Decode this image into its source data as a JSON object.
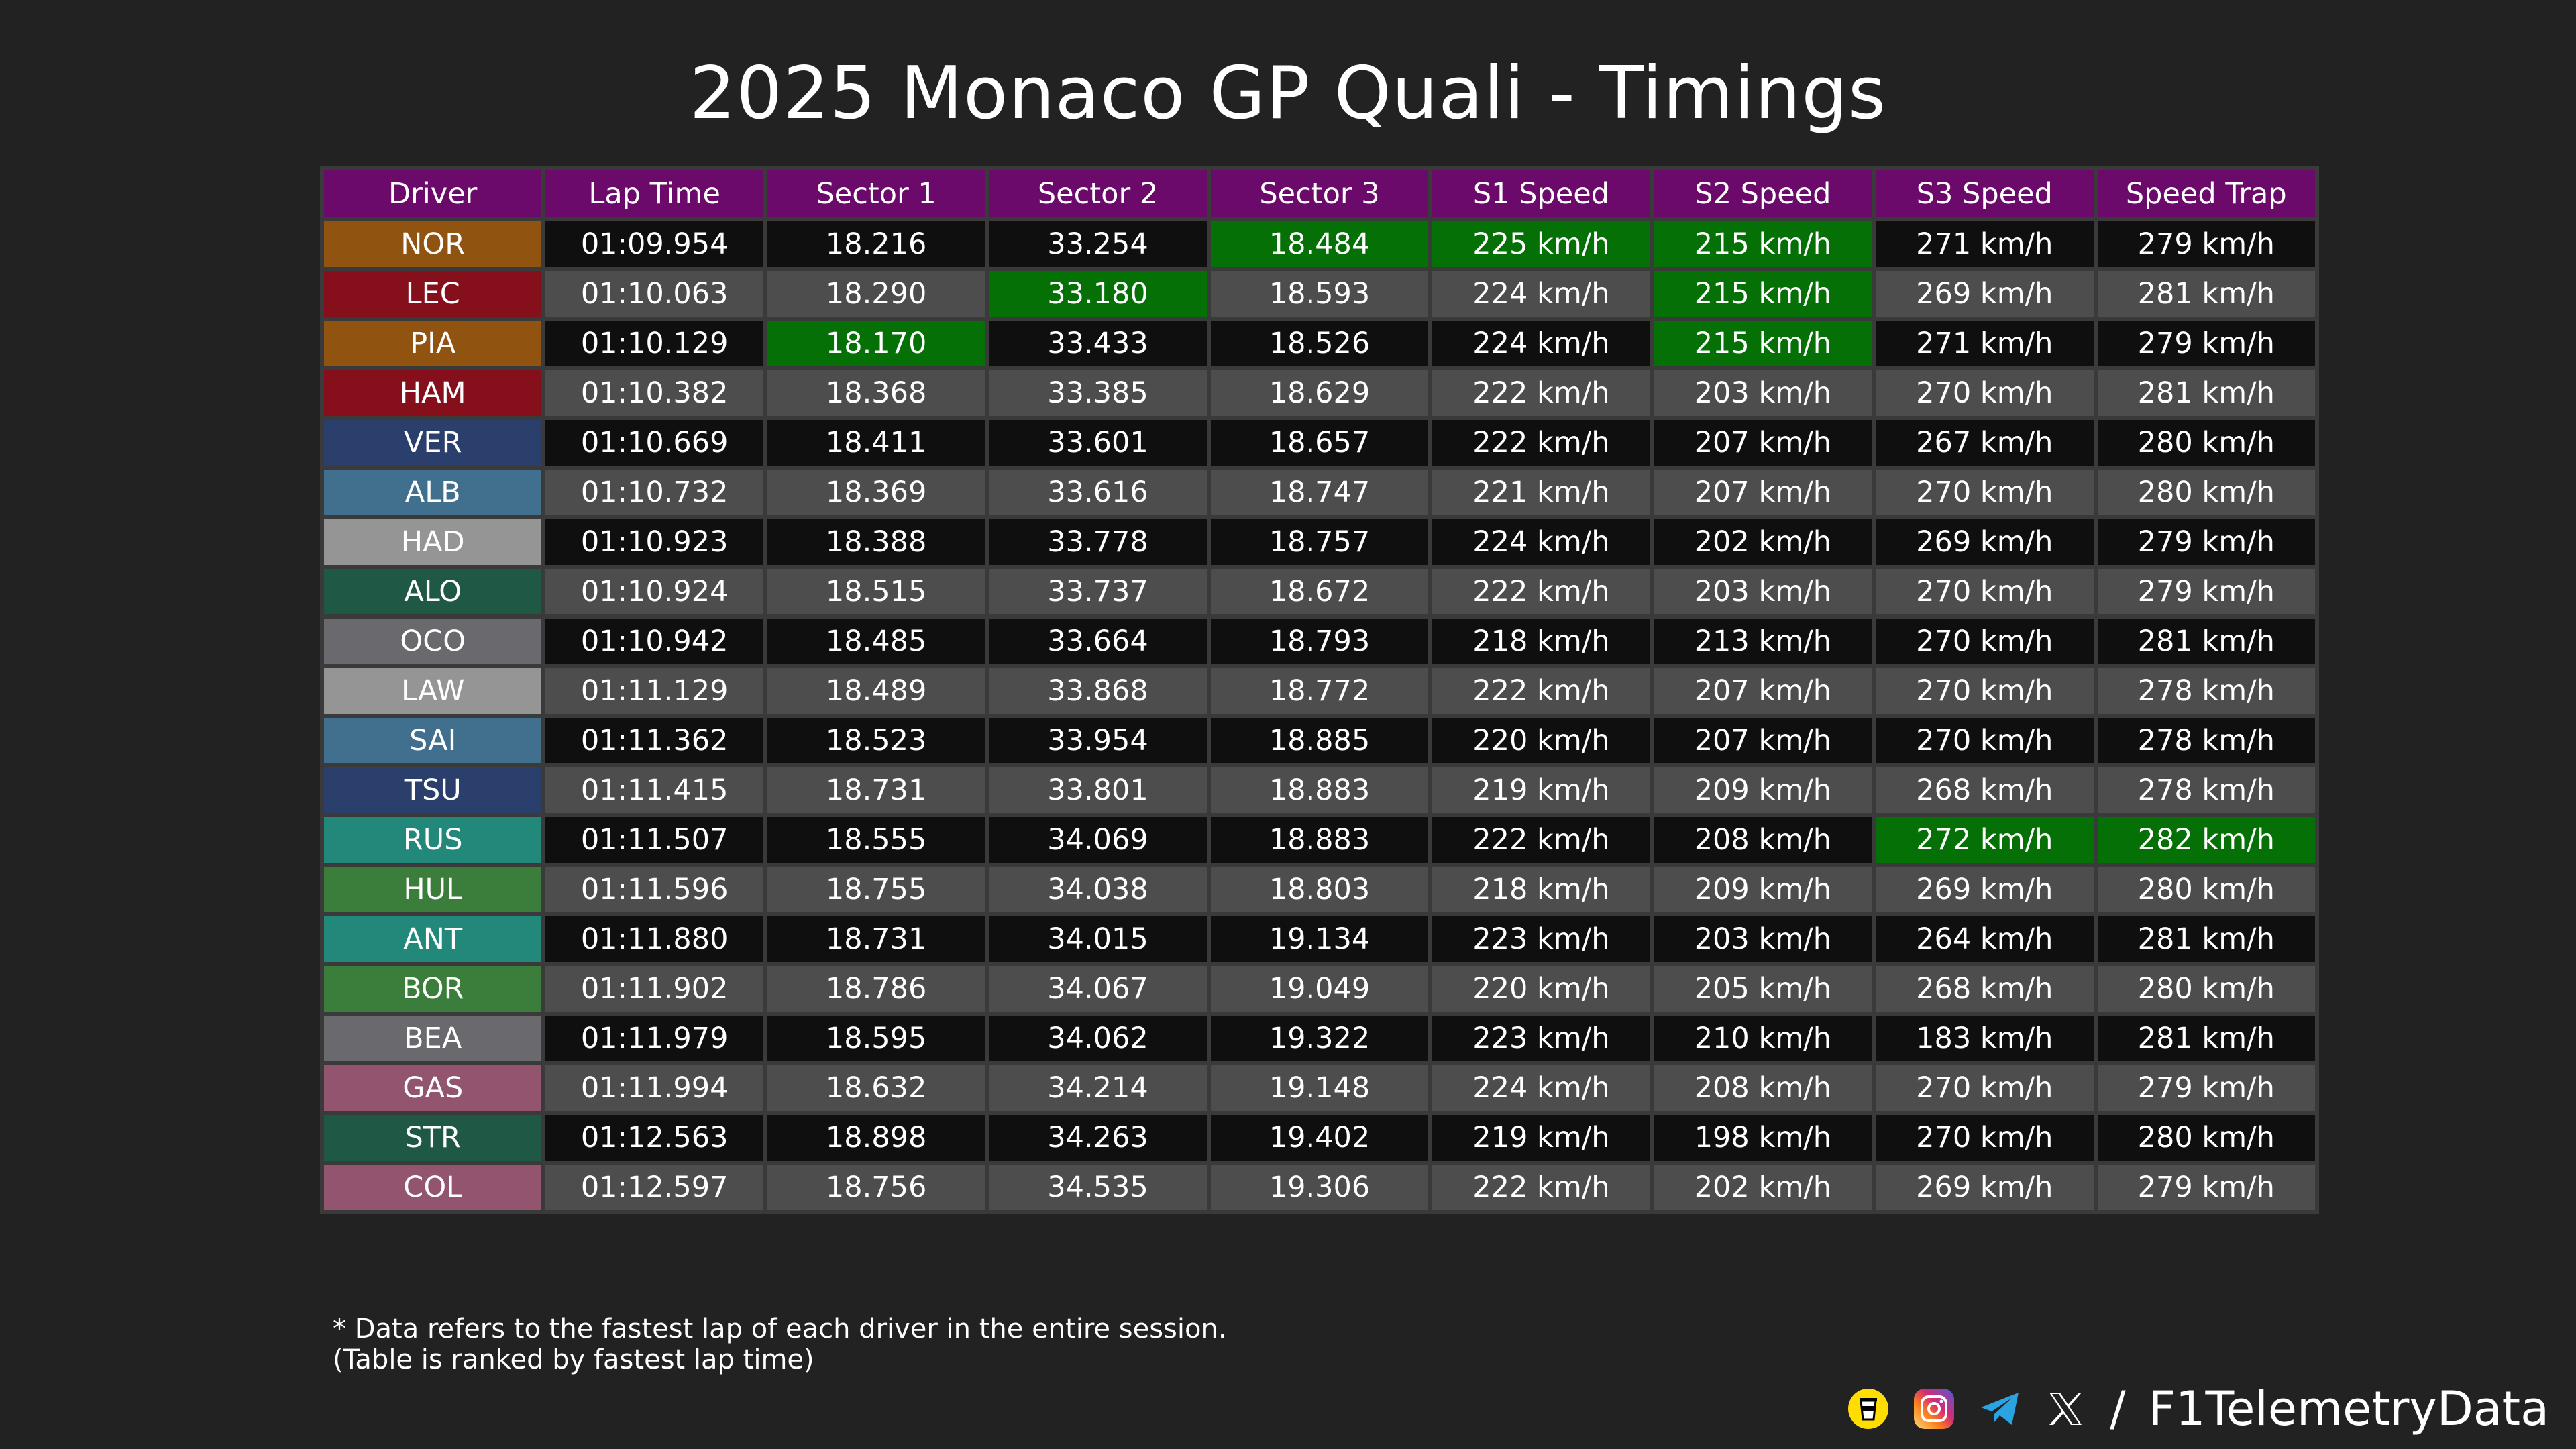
{
  "header": {
    "title": "2025 Monaco GP Quali - Timings"
  },
  "watermark": {
    "text": "@F1TelemetryData"
  },
  "colors": {
    "background": "#222222",
    "header": "#6b0a6b",
    "best": "#057005",
    "row_dark": "#0f0f0f",
    "row_light": "#4d4d4d"
  },
  "chart_data": {
    "type": "table",
    "title": "2025 Monaco GP Quali - Timings",
    "columns": [
      "Driver",
      "Lap Time",
      "Sector 1",
      "Sector 2",
      "Sector 3",
      "S1 Speed",
      "S2 Speed",
      "S3 Speed",
      "Speed Trap"
    ],
    "rows": [
      {
        "driver": "NOR",
        "color": "#905410",
        "cells": [
          "01:09.954",
          "18.216",
          "33.254",
          "18.484",
          "225 km/h",
          "215 km/h",
          "271 km/h",
          "279 km/h"
        ],
        "best": [
          3,
          4,
          5
        ]
      },
      {
        "driver": "LEC",
        "color": "#85101c",
        "cells": [
          "01:10.063",
          "18.290",
          "33.180",
          "18.593",
          "224 km/h",
          "215 km/h",
          "269 km/h",
          "281 km/h"
        ],
        "best": [
          2,
          5
        ]
      },
      {
        "driver": "PIA",
        "color": "#905410",
        "cells": [
          "01:10.129",
          "18.170",
          "33.433",
          "18.526",
          "224 km/h",
          "215 km/h",
          "271 km/h",
          "279 km/h"
        ],
        "best": [
          1,
          5
        ]
      },
      {
        "driver": "HAM",
        "color": "#85101c",
        "cells": [
          "01:10.382",
          "18.368",
          "33.385",
          "18.629",
          "222 km/h",
          "203 km/h",
          "270 km/h",
          "281 km/h"
        ],
        "best": []
      },
      {
        "driver": "VER",
        "color": "#2a3f6b",
        "cells": [
          "01:10.669",
          "18.411",
          "33.601",
          "18.657",
          "222 km/h",
          "207 km/h",
          "267 km/h",
          "280 km/h"
        ],
        "best": []
      },
      {
        "driver": "ALB",
        "color": "#41708e",
        "cells": [
          "01:10.732",
          "18.369",
          "33.616",
          "18.747",
          "221 km/h",
          "207 km/h",
          "270 km/h",
          "280 km/h"
        ],
        "best": []
      },
      {
        "driver": "HAD",
        "color": "#959595",
        "cells": [
          "01:10.923",
          "18.388",
          "33.778",
          "18.757",
          "224 km/h",
          "202 km/h",
          "269 km/h",
          "279 km/h"
        ],
        "best": []
      },
      {
        "driver": "ALO",
        "color": "#1f5844",
        "cells": [
          "01:10.924",
          "18.515",
          "33.737",
          "18.672",
          "222 km/h",
          "203 km/h",
          "270 km/h",
          "279 km/h"
        ],
        "best": []
      },
      {
        "driver": "OCO",
        "color": "#6a6a6e",
        "cells": [
          "01:10.942",
          "18.485",
          "33.664",
          "18.793",
          "218 km/h",
          "213 km/h",
          "270 km/h",
          "281 km/h"
        ],
        "best": []
      },
      {
        "driver": "LAW",
        "color": "#959595",
        "cells": [
          "01:11.129",
          "18.489",
          "33.868",
          "18.772",
          "222 km/h",
          "207 km/h",
          "270 km/h",
          "278 km/h"
        ],
        "best": []
      },
      {
        "driver": "SAI",
        "color": "#41708e",
        "cells": [
          "01:11.362",
          "18.523",
          "33.954",
          "18.885",
          "220 km/h",
          "207 km/h",
          "270 km/h",
          "278 km/h"
        ],
        "best": []
      },
      {
        "driver": "TSU",
        "color": "#2a3f6b",
        "cells": [
          "01:11.415",
          "18.731",
          "33.801",
          "18.883",
          "219 km/h",
          "209 km/h",
          "268 km/h",
          "278 km/h"
        ],
        "best": []
      },
      {
        "driver": "RUS",
        "color": "#21887a",
        "cells": [
          "01:11.507",
          "18.555",
          "34.069",
          "18.883",
          "222 km/h",
          "208 km/h",
          "272 km/h",
          "282 km/h"
        ],
        "best": [
          6,
          7
        ]
      },
      {
        "driver": "HUL",
        "color": "#3b7d3a",
        "cells": [
          "01:11.596",
          "18.755",
          "34.038",
          "18.803",
          "218 km/h",
          "209 km/h",
          "269 km/h",
          "280 km/h"
        ],
        "best": []
      },
      {
        "driver": "ANT",
        "color": "#21887a",
        "cells": [
          "01:11.880",
          "18.731",
          "34.015",
          "19.134",
          "223 km/h",
          "203 km/h",
          "264 km/h",
          "281 km/h"
        ],
        "best": []
      },
      {
        "driver": "BOR",
        "color": "#3b7d3a",
        "cells": [
          "01:11.902",
          "18.786",
          "34.067",
          "19.049",
          "220 km/h",
          "205 km/h",
          "268 km/h",
          "280 km/h"
        ],
        "best": []
      },
      {
        "driver": "BEA",
        "color": "#6a6a6e",
        "cells": [
          "01:11.979",
          "18.595",
          "34.062",
          "19.322",
          "223 km/h",
          "210 km/h",
          "183 km/h",
          "281 km/h"
        ],
        "best": []
      },
      {
        "driver": "GAS",
        "color": "#93546f",
        "cells": [
          "01:11.994",
          "18.632",
          "34.214",
          "19.148",
          "224 km/h",
          "208 km/h",
          "270 km/h",
          "279 km/h"
        ],
        "best": []
      },
      {
        "driver": "STR",
        "color": "#1f5844",
        "cells": [
          "01:12.563",
          "18.898",
          "34.263",
          "19.402",
          "219 km/h",
          "198 km/h",
          "270 km/h",
          "280 km/h"
        ],
        "best": []
      },
      {
        "driver": "COL",
        "color": "#93546f",
        "cells": [
          "01:12.597",
          "18.756",
          "34.535",
          "19.306",
          "222 km/h",
          "202 km/h",
          "269 km/h",
          "279 km/h"
        ],
        "best": []
      }
    ]
  },
  "footnote": {
    "line1": "* Data refers to the fastest lap of each driver in the entire session.",
    "line2": "(Table is ranked by fastest lap time)"
  },
  "social": {
    "icons": [
      "buymeacoffee-icon",
      "instagram-icon",
      "telegram-icon",
      "x-icon"
    ],
    "separator": "/",
    "handle": "F1TelemetryData"
  }
}
